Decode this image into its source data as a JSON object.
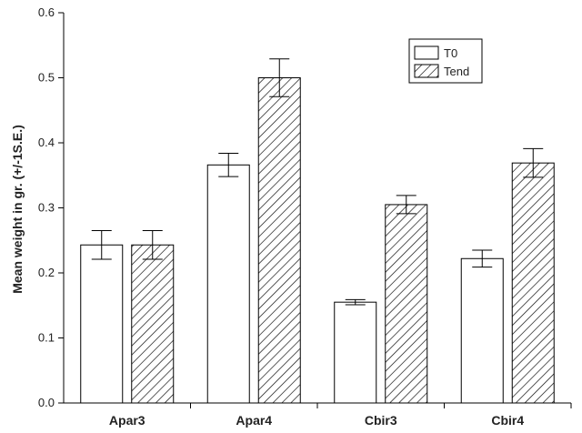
{
  "chart_data": {
    "type": "bar",
    "title": "",
    "xlabel": "",
    "ylabel": "Mean weight in gr. (+/-1S.E.)",
    "categories": [
      "Apar3",
      "Apar4",
      "Cbir3",
      "Cbir4"
    ],
    "ylim": [
      0,
      0.6
    ],
    "yticks": [
      "0.0",
      "0.1",
      "0.2",
      "0.3",
      "0.4",
      "0.5",
      "0.6"
    ],
    "grid": false,
    "legend_position": "top-right",
    "series": [
      {
        "name": "T0",
        "fill": "open",
        "values": [
          0.243,
          0.366,
          0.155,
          0.222
        ],
        "errors": [
          0.022,
          0.018,
          0.004,
          0.013
        ]
      },
      {
        "name": "Tend",
        "fill": "hatched",
        "values": [
          0.243,
          0.5,
          0.305,
          0.369
        ],
        "errors": [
          0.022,
          0.029,
          0.014,
          0.022
        ]
      }
    ],
    "colors": {
      "axis": "#000000",
      "bar_stroke": "#000000",
      "bar_fill": "#ffffff",
      "hatch": "#000000"
    }
  }
}
